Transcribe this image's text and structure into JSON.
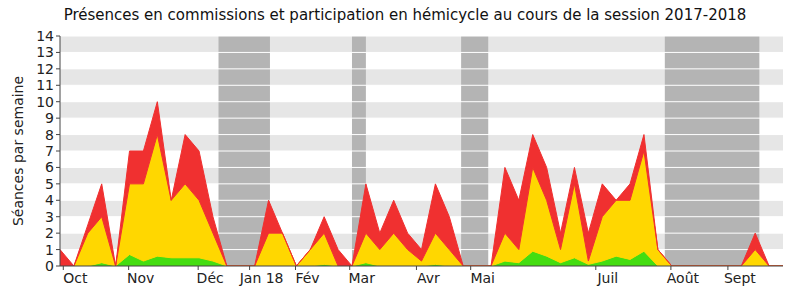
{
  "chart_data": {
    "type": "area",
    "title": "Présences en commissions et participation en hémicycle au cours de la session 2017-2018",
    "y_label": "Séances par semaine",
    "stacked": true,
    "grid": true,
    "x": [
      0,
      1,
      2,
      3,
      4,
      5,
      6,
      7,
      8,
      9,
      10,
      11,
      12,
      13,
      14,
      15,
      16,
      17,
      18,
      19,
      20,
      21,
      22,
      23,
      24,
      25,
      26,
      27,
      28,
      29,
      30,
      31,
      32,
      33,
      34,
      35,
      36,
      37,
      38,
      39,
      40,
      41,
      42,
      43,
      44,
      45,
      46,
      47,
      48,
      49,
      50,
      51,
      52
    ],
    "xlim": [
      0,
      52
    ],
    "xticks": [
      {
        "value": 1.1,
        "label": "Oct"
      },
      {
        "value": 5.8,
        "label": "Nov"
      },
      {
        "value": 10.8,
        "label": "Déc"
      },
      {
        "value": 14.5,
        "label": "Jan 18"
      },
      {
        "value": 17.8,
        "label": "Fév"
      },
      {
        "value": 21.7,
        "label": "Mar"
      },
      {
        "value": 26.5,
        "label": "Avr"
      },
      {
        "value": 30.4,
        "label": "Mai"
      },
      {
        "value": 39.4,
        "label": "Juil"
      },
      {
        "value": 44.8,
        "label": "Août"
      },
      {
        "value": 48.9,
        "label": "Sept"
      }
    ],
    "ylim": [
      0,
      14
    ],
    "yticks": [
      0,
      1,
      2,
      3,
      4,
      5,
      6,
      7,
      8,
      9,
      10,
      11,
      12,
      13,
      14
    ],
    "shaded_periods": [
      [
        11.4,
        15.1
      ],
      [
        21.0,
        22.0
      ],
      [
        28.85,
        30.8
      ],
      [
        43.5,
        50.3
      ]
    ],
    "series": [
      {
        "color": "#44dd11",
        "values": [
          0,
          0,
          0,
          0.2,
          0,
          0.7,
          0.3,
          0.6,
          0.5,
          0.5,
          0.5,
          0.3,
          0,
          0,
          0,
          0,
          0,
          0,
          0,
          0.1,
          0,
          0,
          0.2,
          0,
          0,
          0,
          0,
          0.1,
          0,
          0,
          0,
          0,
          0.3,
          0.2,
          0.9,
          0.6,
          0.2,
          0.5,
          0.1,
          0.3,
          0.6,
          0.4,
          0.9,
          0,
          0,
          0,
          0,
          0,
          0,
          0,
          0,
          0,
          0
        ]
      },
      {
        "color": "#ffd700",
        "values": [
          0,
          0,
          2,
          2.8,
          0,
          4.3,
          4.7,
          7.4,
          3.5,
          4.5,
          3.5,
          1.7,
          0,
          0,
          0,
          2,
          2,
          0,
          1,
          1.9,
          0,
          0,
          1.8,
          1,
          2,
          1,
          0.3,
          1.9,
          1,
          0,
          0,
          0,
          1.7,
          0.8,
          5.1,
          3.4,
          0.8,
          4.5,
          0.2,
          2.7,
          3.4,
          3.6,
          6.1,
          1,
          0,
          0,
          0,
          0,
          0,
          0,
          1,
          0,
          0
        ]
      },
      {
        "color": "#f03030",
        "values": [
          1,
          0,
          0.5,
          2,
          0,
          2,
          2,
          2,
          0,
          3,
          3,
          1,
          0,
          0,
          0,
          2,
          0,
          0,
          0,
          1,
          1,
          0,
          3,
          1,
          2,
          1,
          0.7,
          3,
          2,
          0,
          0,
          0,
          4,
          3,
          2,
          2,
          1,
          1,
          1.7,
          2,
          0,
          1,
          1,
          0,
          0,
          0,
          0,
          0,
          0,
          0,
          1,
          0,
          0
        ]
      }
    ]
  }
}
